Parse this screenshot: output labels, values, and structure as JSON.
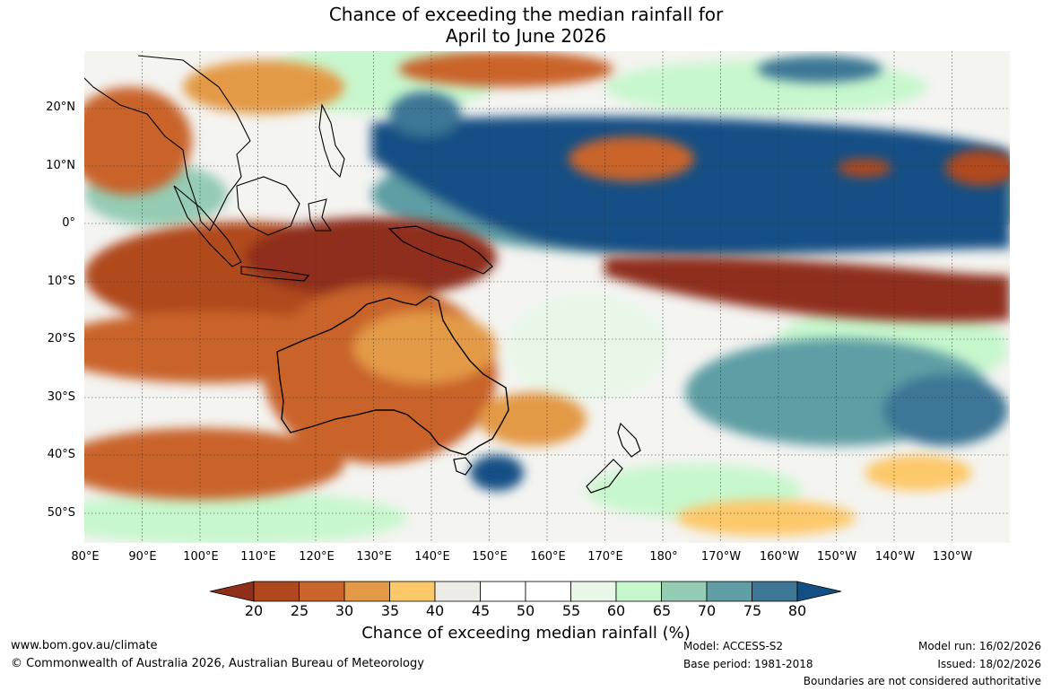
{
  "title": {
    "line1": "Chance of exceeding the median rainfall for",
    "line2": "April to June 2026"
  },
  "axes": {
    "lat_labels": [
      "20°N",
      "10°N",
      "0°",
      "10°S",
      "20°S",
      "30°S",
      "40°S",
      "50°S"
    ],
    "lon_labels": [
      "80°E",
      "90°E",
      "100°E",
      "110°E",
      "120°E",
      "130°E",
      "140°E",
      "150°E",
      "160°E",
      "170°E",
      "180°",
      "170°W",
      "160°W",
      "150°W",
      "140°W",
      "130°W"
    ]
  },
  "legend": {
    "title": "Chance of exceeding median rainfall (%)",
    "ticks": [
      "20",
      "25",
      "30",
      "35",
      "40",
      "45",
      "50",
      "55",
      "60",
      "65",
      "70",
      "75",
      "80"
    ],
    "colors": [
      "#8f2f1a",
      "#b0481f",
      "#c9642c",
      "#e39a46",
      "#fdc86a",
      "#ecebe6",
      "#ffffff",
      "#ffffff",
      "#e8f7e8",
      "#c7f7cd",
      "#95ccb4",
      "#5f9ea5",
      "#3e7696",
      "#124f85"
    ]
  },
  "footer": {
    "website": "www.bom.gov.au/climate",
    "copyright": "© Commonwealth of Australia 2026, Australian Bureau of Meteorology",
    "model": "Model: ACCESS-S2",
    "base_period": "Base period: 1981-2018",
    "model_run": "Model run: 16/02/2026",
    "issued": "Issued: 18/02/2026",
    "disclaimer": "Boundaries are not considered authoritative"
  }
}
